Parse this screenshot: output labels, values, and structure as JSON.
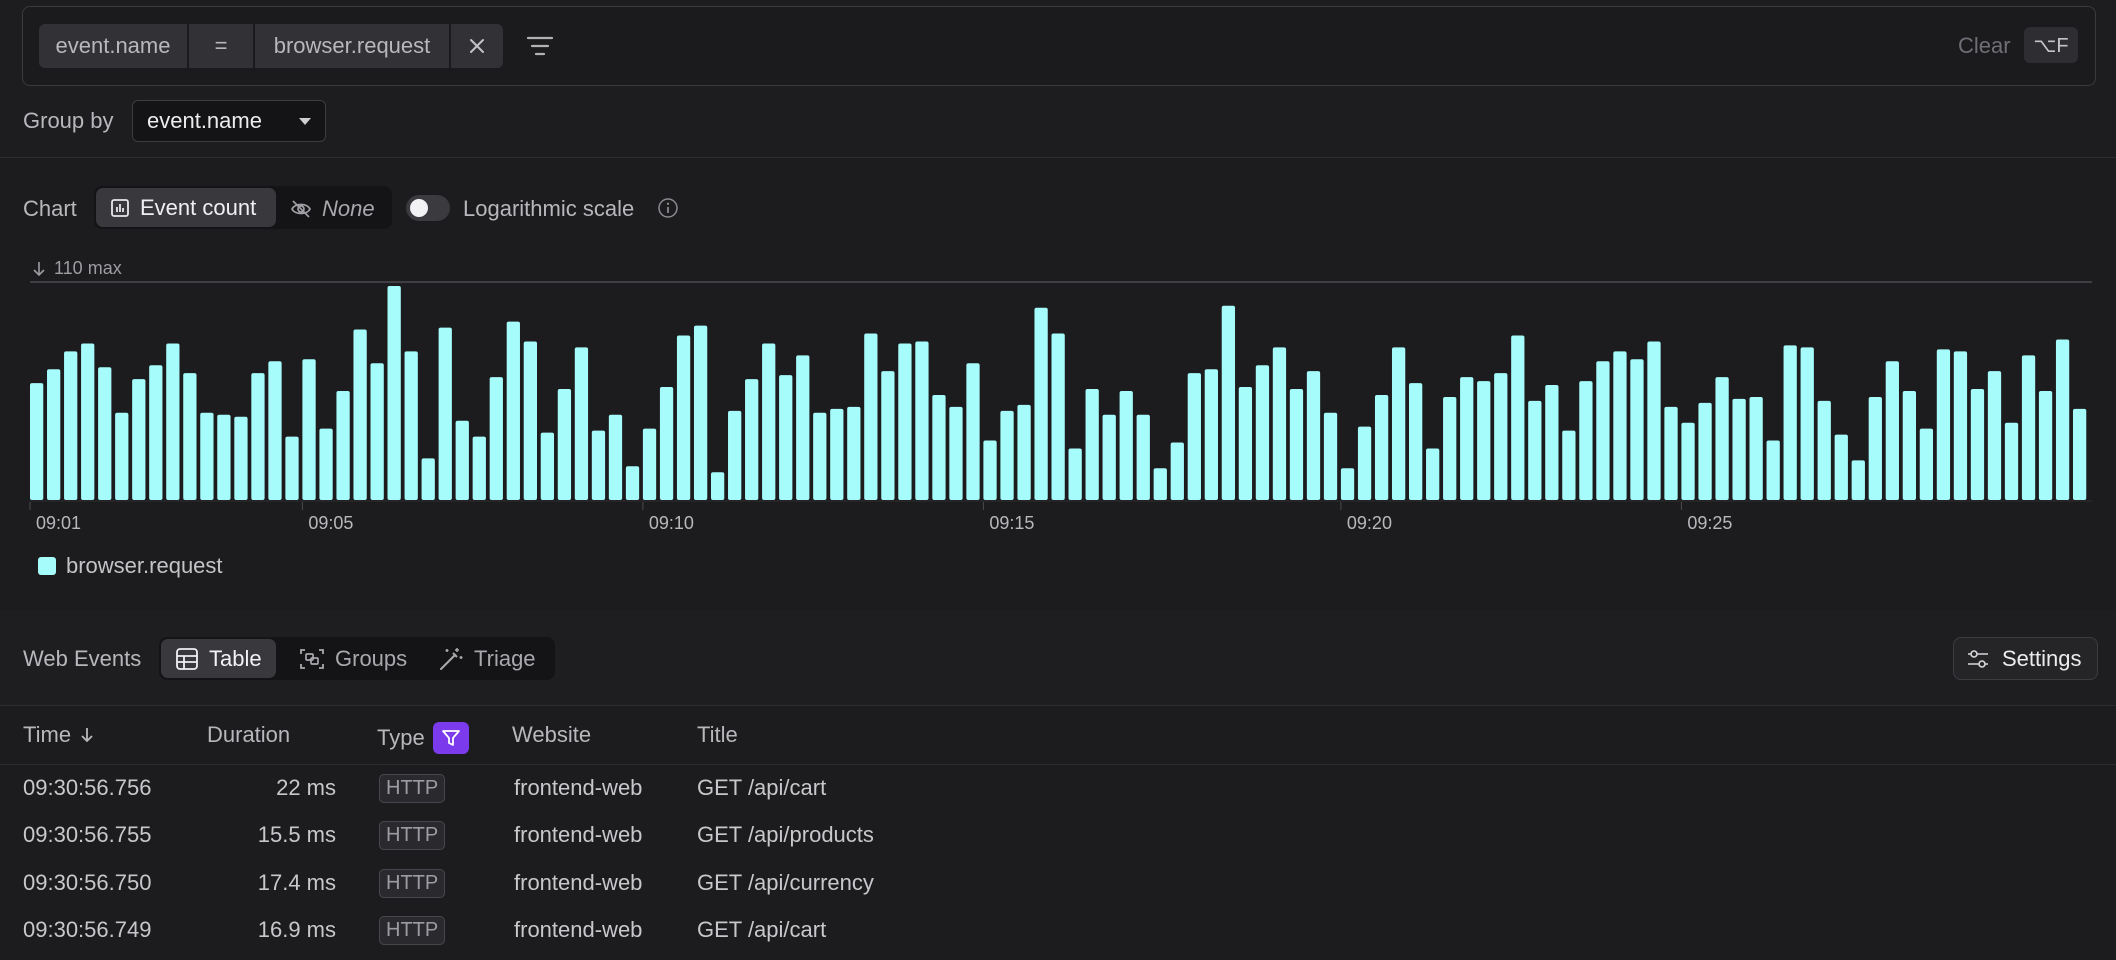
{
  "filter": {
    "key": "event.name",
    "op": "=",
    "value": "browser.request",
    "clear_label": "Clear",
    "shortcut": "⌥F"
  },
  "group_by": {
    "label": "Group by",
    "value": "event.name"
  },
  "chart_controls": {
    "label": "Chart",
    "active_option": "Event count",
    "other_option": "None",
    "log_label": "Logarithmic scale",
    "log_enabled": false
  },
  "chart_data": {
    "type": "bar",
    "max_label": "110 max",
    "ylim": [
      0,
      110
    ],
    "x_tick_labels": [
      "09:01",
      "09:05",
      "09:10",
      "09:15",
      "09:20",
      "09:25"
    ],
    "series": [
      {
        "name": "browser.request",
        "color": "#a6fbfb",
        "values": [
          59,
          66,
          75,
          79,
          67,
          44,
          61,
          68,
          79,
          64,
          44,
          43,
          42,
          64,
          70,
          32,
          71,
          36,
          55,
          86,
          69,
          108,
          75,
          21,
          87,
          40,
          32,
          62,
          90,
          80,
          34,
          56,
          77,
          35,
          43,
          17,
          36,
          57,
          83,
          88,
          14,
          45,
          61,
          79,
          63,
          73,
          44,
          46,
          47,
          84,
          65,
          79,
          80,
          53,
          47,
          69,
          30,
          45,
          48,
          97,
          84,
          26,
          56,
          43,
          55,
          43,
          16,
          29,
          64,
          66,
          98,
          57,
          68,
          77,
          56,
          65,
          44,
          16,
          37,
          53,
          77,
          59,
          26,
          52,
          62,
          60,
          64,
          83,
          50,
          58,
          35,
          60,
          70,
          75,
          71,
          80,
          47,
          39,
          49,
          62,
          51,
          52,
          30,
          78,
          77,
          50,
          33,
          20,
          52,
          70,
          55,
          36,
          76,
          75,
          56,
          65,
          39,
          73,
          55,
          81,
          46
        ]
      }
    ]
  },
  "events": {
    "title": "Web Events",
    "tabs": [
      "Table",
      "Groups",
      "Triage"
    ],
    "active_tab": "Table",
    "settings_label": "Settings",
    "columns": [
      "Time",
      "Duration",
      "Type",
      "Website",
      "Title"
    ],
    "rows": [
      {
        "time": "09:30:56.756",
        "duration": "22 ms",
        "type": "HTTP",
        "website": "frontend-web",
        "title": "GET /api/cart"
      },
      {
        "time": "09:30:56.755",
        "duration": "15.5 ms",
        "type": "HTTP",
        "website": "frontend-web",
        "title": "GET /api/products"
      },
      {
        "time": "09:30:56.750",
        "duration": "17.4 ms",
        "type": "HTTP",
        "website": "frontend-web",
        "title": "GET /api/currency"
      },
      {
        "time": "09:30:56.749",
        "duration": "16.9 ms",
        "type": "HTTP",
        "website": "frontend-web",
        "title": "GET /api/cart"
      }
    ]
  }
}
